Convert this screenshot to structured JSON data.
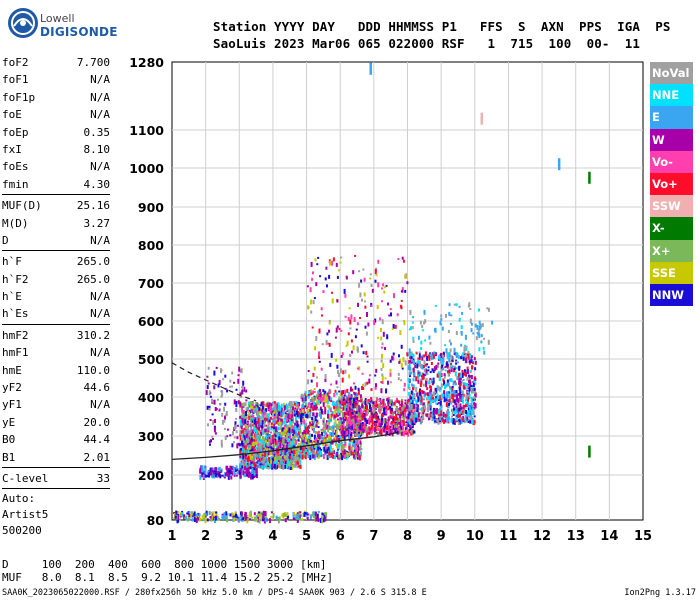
{
  "logo": {
    "top": "Lowell",
    "bottom": "DIGISONDE"
  },
  "header": {
    "line1": "Station YYYY DAY   DDD HHMMSS P1   FFS  S  AXN  PPS  IGA  PS",
    "line2": "SaoLuis 2023 Mar06 065 022000 RSF   1  715  100  00-  11"
  },
  "params": [
    {
      "key": "foF2",
      "value": "7.700"
    },
    {
      "key": "foF1",
      "value": "N/A"
    },
    {
      "key": "foF1p",
      "value": "N/A"
    },
    {
      "key": "foE",
      "value": "N/A"
    },
    {
      "key": "foEp",
      "value": "0.35"
    },
    {
      "key": "fxI",
      "value": "8.10"
    },
    {
      "key": "foEs",
      "value": "N/A"
    },
    {
      "key": "fmin",
      "value": "4.30"
    },
    {
      "sep": true
    },
    {
      "key": "MUF(D)",
      "value": "25.16"
    },
    {
      "key": "M(D)",
      "value": "3.27"
    },
    {
      "key": "D",
      "value": "N/A"
    },
    {
      "sep": true
    },
    {
      "key": "h`F",
      "value": "265.0"
    },
    {
      "key": "h`F2",
      "value": "265.0"
    },
    {
      "key": "h`E",
      "value": "N/A"
    },
    {
      "key": "h`Es",
      "value": "N/A"
    },
    {
      "sep": true
    },
    {
      "key": "hmF2",
      "value": "310.2"
    },
    {
      "key": "hmF1",
      "value": "N/A"
    },
    {
      "key": "hmE",
      "value": "110.0"
    },
    {
      "key": "yF2",
      "value": "44.6"
    },
    {
      "key": "yF1",
      "value": "N/A"
    },
    {
      "key": "yE",
      "value": "20.0"
    },
    {
      "key": "B0",
      "value": "44.4"
    },
    {
      "key": "B1",
      "value": "2.01"
    },
    {
      "sep": true
    },
    {
      "key": "C-level",
      "value": "33"
    },
    {
      "sep": true
    }
  ],
  "autoscale": {
    "line1": "Auto:",
    "line2": "Artist5",
    "line3": "500200"
  },
  "legend": [
    {
      "label": "NoVal",
      "color": "#a0a0a0"
    },
    {
      "label": "NNE",
      "color": "#00e0ff"
    },
    {
      "label": "E",
      "color": "#3aa6f2"
    },
    {
      "label": "W",
      "color": "#a800a8"
    },
    {
      "label": "Vo-",
      "color": "#ff3fae"
    },
    {
      "label": "Vo+",
      "color": "#ff0d2b"
    },
    {
      "label": "SSW",
      "color": "#f0b0b0"
    },
    {
      "label": "X-",
      "color": "#007a00"
    },
    {
      "label": "X+",
      "color": "#7ab85a"
    },
    {
      "label": "SSE",
      "color": "#c8c800"
    },
    {
      "label": "NNW",
      "color": "#1a0dd6"
    }
  ],
  "footer": {
    "d_line": "D     100  200  400  600  800 1000 1500 3000 [km]",
    "muf_line": "MUF   8.0  8.1  8.5  9.2 10.1 11.4 15.2 25.2 [MHz]",
    "file": "SAA0K_2023065022000.RSF / 280fx256h 50 kHz 5.0 km / DPS-4 SAA0K 903 / 2.6 S 315.8 E",
    "version": "Ion2Png 1.3.17"
  },
  "chart_data": {
    "type": "scatter",
    "xlabel": "",
    "ylabel": "",
    "xlim": [
      1,
      15
    ],
    "x_ticks": [
      "1",
      "2",
      "3",
      "4",
      "5",
      "6",
      "7",
      "8",
      "9",
      "10",
      "11",
      "12",
      "13",
      "14",
      "15"
    ],
    "y_ticks": [
      {
        "v": 80,
        "label": "80"
      },
      {
        "v": 200,
        "label": "200"
      },
      {
        "v": 300,
        "label": "300"
      },
      {
        "v": 400,
        "label": "400"
      },
      {
        "v": 500,
        "label": "500"
      },
      {
        "v": 600,
        "label": "600"
      },
      {
        "v": 700,
        "label": "700"
      },
      {
        "v": 800,
        "label": "800"
      },
      {
        "v": 900,
        "label": "900"
      },
      {
        "v": 1000,
        "label": "1000"
      },
      {
        "v": 1100,
        "label": "1100"
      },
      {
        "v": 1280,
        "label": "1280"
      }
    ],
    "grid": true,
    "scaled_profile": {
      "name": "",
      "x": [
        1.0,
        2.0,
        3.0,
        4.0,
        5.0,
        6.0,
        7.0,
        7.5,
        7.7
      ],
      "y": [
        240,
        245,
        252,
        262,
        275,
        288,
        298,
        305,
        310
      ]
    },
    "dashed_profile": {
      "name": "",
      "x": [
        1.0,
        1.5,
        2.0,
        2.5,
        3.0,
        3.5
      ],
      "y": [
        490,
        465,
        445,
        425,
        405,
        390
      ]
    },
    "isolated_marks": [
      {
        "x": 6.9,
        "y": 1262,
        "color": "#3aa6f2"
      },
      {
        "x": 10.2,
        "y": 1130,
        "color": "#f0b0b0"
      },
      {
        "x": 12.5,
        "y": 1010,
        "color": "#3aa6f2"
      },
      {
        "x": 13.4,
        "y": 975,
        "color": "#007a00"
      },
      {
        "x": 13.4,
        "y": 260,
        "color": "#007a00"
      }
    ],
    "clusters": [
      {
        "x": [
          3.0,
          4.8
        ],
        "y": [
          225,
          390
        ],
        "density": 1500,
        "colors": [
          "#a800a8",
          "#1a0dd6",
          "#ff0d2b",
          "#c8c800",
          "#7ab85a",
          "#3aa6f2",
          "#00e0ff",
          "#ff3fae",
          "#a0a0a0"
        ]
      },
      {
        "x": [
          4.8,
          6.6
        ],
        "y": [
          250,
          420
        ],
        "density": 900,
        "colors": [
          "#a800a8",
          "#1a0dd6",
          "#ff0d2b",
          "#c8c800",
          "#7ab85a",
          "#3aa6f2",
          "#00e0ff",
          "#ff3fae"
        ]
      },
      {
        "x": [
          6.0,
          8.2
        ],
        "y": [
          310,
          400
        ],
        "density": 700,
        "colors": [
          "#ff0d2b",
          "#ff3fae",
          "#a800a8",
          "#1a0dd6",
          "#7ab85a"
        ]
      },
      {
        "x": [
          8.0,
          10.0
        ],
        "y": [
          340,
          520
        ],
        "density": 800,
        "colors": [
          "#3aa6f2",
          "#00e0ff",
          "#1a0dd6",
          "#a800a8",
          "#a0a0a0",
          "#ff0d2b"
        ]
      },
      {
        "x": [
          5.0,
          8.0
        ],
        "y": [
          420,
          780
        ],
        "density": 250,
        "colors": [
          "#a800a8",
          "#ff3fae",
          "#ff0d2b",
          "#1a0dd6",
          "#c8c800",
          "#a0a0a0"
        ]
      },
      {
        "x": [
          8.0,
          10.5
        ],
        "y": [
          520,
          650
        ],
        "density": 90,
        "colors": [
          "#3aa6f2",
          "#00e0ff",
          "#a0a0a0"
        ]
      },
      {
        "x": [
          1.8,
          3.5
        ],
        "y": [
          200,
          225
        ],
        "density": 160,
        "colors": [
          "#1a0dd6",
          "#a800a8",
          "#3aa6f2"
        ]
      },
      {
        "x": [
          1.0,
          5.6
        ],
        "y": [
          84,
          105
        ],
        "density": 260,
        "colors": [
          "#1a0dd6",
          "#a800a8",
          "#c8c800",
          "#3aa6f2",
          "#7ab85a"
        ]
      },
      {
        "x": [
          2.0,
          3.2
        ],
        "y": [
          280,
          480
        ],
        "density": 120,
        "colors": [
          "#a0a0a0",
          "#1a0dd6",
          "#a800a8"
        ]
      }
    ]
  }
}
